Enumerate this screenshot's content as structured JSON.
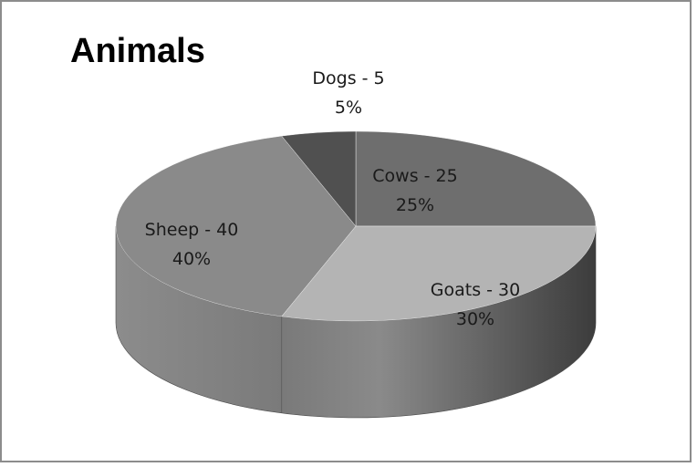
{
  "chart_data": {
    "type": "pie",
    "title": "Animals",
    "labels": [
      "Cows",
      "Goats",
      "Sheep",
      "Dogs"
    ],
    "values": [
      25,
      30,
      40,
      5
    ],
    "percents": [
      "25%",
      "30%",
      "40%",
      "5%"
    ],
    "data_labels": [
      "Cows - 25",
      "Goats - 30",
      "Sheep - 40",
      "Dogs - 5"
    ],
    "colors": [
      "#6e6e6e",
      "#b4b4b4",
      "#8a8a8a",
      "#505050"
    ],
    "style": "3d",
    "legend": "none"
  }
}
